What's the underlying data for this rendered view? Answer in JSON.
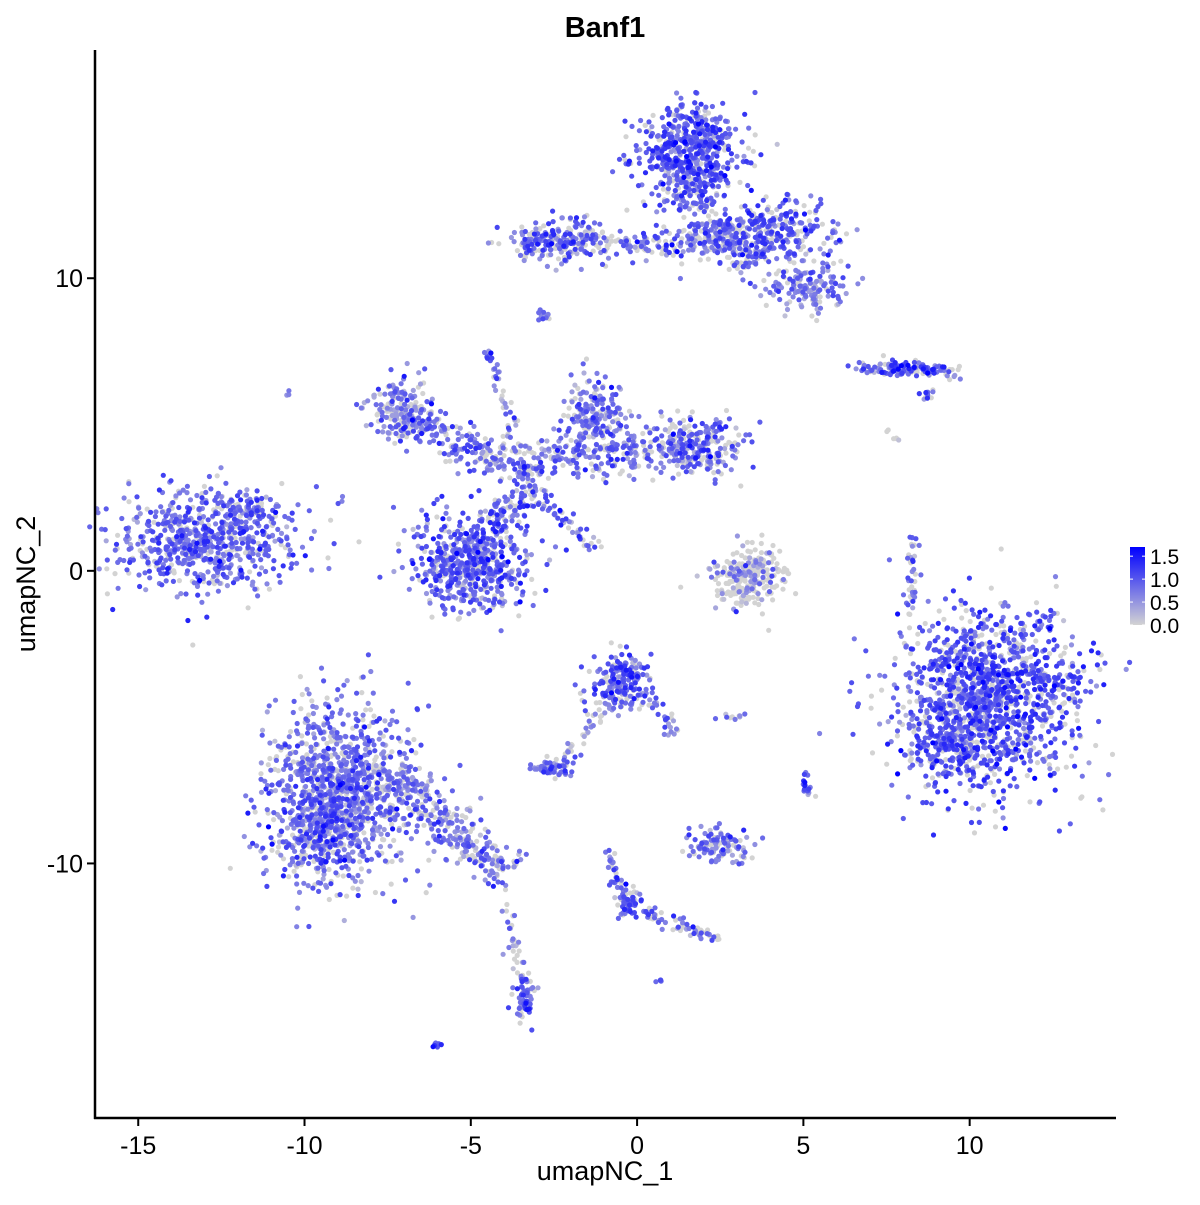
{
  "chart_data": {
    "type": "scatter",
    "title": "Banf1",
    "xlabel": "umapNC_1",
    "ylabel": "umapNC_2",
    "xlim": [
      -16.3,
      14.4
    ],
    "ylim": [
      -18.7,
      17.8
    ],
    "xticks": [
      -15,
      -10,
      -5,
      0,
      5,
      10
    ],
    "xtick_labels": [
      "-15",
      "-10",
      "-5",
      "0",
      "5",
      "10"
    ],
    "yticks": [
      -10,
      0,
      10
    ],
    "ytick_labels": [
      "-10",
      "0",
      "10"
    ],
    "grid": false,
    "legend": {
      "placement": "right",
      "range": [
        0,
        1.7
      ],
      "ticks": [
        0,
        0.5,
        1.0,
        1.5
      ],
      "tick_labels": [
        "0.0",
        "0.5",
        "1.0",
        "1.5"
      ]
    },
    "colors": {
      "low": "#D3D3D3",
      "high": "#0000FF"
    },
    "note_approximation": "point clouds summarised as clusters (center, spread, expression) in umap units",
    "clusters": [
      {
        "x": -12.9,
        "y": 1.1,
        "sx": 1.3,
        "sy": 0.9,
        "n": 700,
        "p": 0.8,
        "expr": 0.85
      },
      {
        "x": -11.6,
        "y": 2.2,
        "sx": 0.3,
        "sy": 0.25,
        "n": 40,
        "p": 0.8,
        "expr": 0.9
      },
      {
        "x": -8.9,
        "y": -7.6,
        "sx": 1.1,
        "sy": 1.5,
        "n": 1100,
        "p": 0.75,
        "expr": 0.8
      },
      {
        "x": -9.7,
        "y": -8.9,
        "sx": 0.6,
        "sy": 0.6,
        "n": 200,
        "p": 0.75,
        "expr": 0.8
      },
      {
        "x": 1.6,
        "y": 14.3,
        "sx": 0.8,
        "sy": 0.8,
        "n": 550,
        "p": 0.8,
        "expr": 0.95
      },
      {
        "x": -2.3,
        "y": 11.3,
        "sx": 0.7,
        "sy": 0.4,
        "n": 160,
        "p": 0.75,
        "expr": 0.9
      },
      {
        "x": 4.0,
        "y": 11.6,
        "sx": 1.0,
        "sy": 0.5,
        "n": 300,
        "p": 0.75,
        "expr": 0.9
      },
      {
        "x": 5.0,
        "y": 9.7,
        "sx": 0.6,
        "sy": 0.4,
        "n": 160,
        "p": 0.75,
        "expr": 0.7
      },
      {
        "x": -5.0,
        "y": 0.3,
        "sx": 0.9,
        "sy": 0.8,
        "n": 600,
        "p": 0.8,
        "expr": 0.9
      },
      {
        "x": -7.0,
        "y": 5.5,
        "sx": 0.5,
        "sy": 0.5,
        "n": 180,
        "p": 0.7,
        "expr": 0.7
      },
      {
        "x": -1.2,
        "y": 5.3,
        "sx": 0.5,
        "sy": 0.6,
        "n": 200,
        "p": 0.75,
        "expr": 0.8
      },
      {
        "x": 1.6,
        "y": 4.3,
        "sx": 0.8,
        "sy": 0.45,
        "n": 300,
        "p": 0.7,
        "expr": 0.85
      },
      {
        "x": 10.6,
        "y": -4.4,
        "sx": 1.4,
        "sy": 1.5,
        "n": 1400,
        "p": 0.75,
        "expr": 1.0
      },
      {
        "x": 9.4,
        "y": -6.1,
        "sx": 0.5,
        "sy": 0.5,
        "n": 150,
        "p": 0.75,
        "expr": 1.0
      },
      {
        "x": 3.3,
        "y": -0.2,
        "sx": 0.5,
        "sy": 0.5,
        "n": 200,
        "p": 0.3,
        "expr": 0.5
      },
      {
        "x": -0.5,
        "y": -3.8,
        "sx": 0.4,
        "sy": 0.5,
        "n": 200,
        "p": 0.8,
        "expr": 0.9
      },
      {
        "x": -2.6,
        "y": -6.8,
        "sx": 0.3,
        "sy": 0.15,
        "n": 60,
        "p": 0.8,
        "expr": 0.8
      },
      {
        "x": 2.4,
        "y": -9.4,
        "sx": 0.45,
        "sy": 0.3,
        "n": 110,
        "p": 0.75,
        "expr": 0.7
      },
      {
        "x": -0.2,
        "y": -11.3,
        "sx": 0.2,
        "sy": 0.3,
        "n": 50,
        "p": 0.85,
        "expr": 1.0
      },
      {
        "x": -3.4,
        "y": -14.7,
        "sx": 0.15,
        "sy": 0.4,
        "n": 60,
        "p": 0.8,
        "expr": 0.9
      },
      {
        "x": 8.0,
        "y": 6.9,
        "sx": 0.7,
        "sy": 0.1,
        "n": 90,
        "p": 0.8,
        "expr": 1.0
      },
      {
        "x": 5.1,
        "y": -7.4,
        "sx": 0.1,
        "sy": 0.2,
        "n": 20,
        "p": 0.8,
        "expr": 0.8
      },
      {
        "x": -6.0,
        "y": -16.2,
        "sx": 0.08,
        "sy": 0.06,
        "n": 8,
        "p": 1,
        "expr": 0.9
      },
      {
        "x": -2.8,
        "y": 8.7,
        "sx": 0.12,
        "sy": 0.12,
        "n": 12,
        "p": 0.8,
        "expr": 0.7
      },
      {
        "x": -4.5,
        "y": 7.4,
        "sx": 0.1,
        "sy": 0.1,
        "n": 12,
        "p": 0.8,
        "expr": 0.8
      },
      {
        "x": -10.5,
        "y": 6.1,
        "sx": 0.04,
        "sy": 0.04,
        "n": 3,
        "p": 1,
        "expr": 0.9
      },
      {
        "x": 0.7,
        "y": -14.0,
        "sx": 0.05,
        "sy": 0.05,
        "n": 4,
        "p": 1,
        "expr": 1.0
      },
      {
        "x": 2.9,
        "y": -5.0,
        "sx": 0.2,
        "sy": 0.06,
        "n": 10,
        "p": 0.8,
        "expr": 0.7
      }
    ],
    "arms": [
      {
        "from": [
          -7.0,
          5.3
        ],
        "to": [
          -4.2,
          3.7
        ],
        "n": 160,
        "w": 0.35,
        "p": 0.75,
        "expr": 0.8
      },
      {
        "from": [
          -4.2,
          3.7
        ],
        "to": [
          0.0,
          4.0
        ],
        "n": 200,
        "w": 0.35,
        "p": 0.75,
        "expr": 0.8
      },
      {
        "from": [
          -4.3,
          7.2
        ],
        "to": [
          -3.3,
          3.0
        ],
        "n": 50,
        "w": 0.12,
        "p": 0.7,
        "expr": 0.8
      },
      {
        "from": [
          -3.3,
          3.0
        ],
        "to": [
          -1.2,
          0.7
        ],
        "n": 60,
        "w": 0.15,
        "p": 0.7,
        "expr": 0.8
      },
      {
        "from": [
          -4.5,
          1.5
        ],
        "to": [
          -3.0,
          3.0
        ],
        "n": 80,
        "w": 0.3,
        "p": 0.7,
        "expr": 0.9
      },
      {
        "from": [
          -7.5,
          -7.0
        ],
        "to": [
          -3.9,
          -10.4
        ],
        "n": 300,
        "w": 0.4,
        "p": 0.7,
        "expr": 0.75
      },
      {
        "from": [
          -4.0,
          -10.6
        ],
        "to": [
          -3.4,
          -14.5
        ],
        "n": 40,
        "w": 0.12,
        "p": 0.5,
        "expr": 0.6
      },
      {
        "from": [
          -3.5,
          11.3
        ],
        "to": [
          0.5,
          11.1
        ],
        "n": 120,
        "w": 0.25,
        "p": 0.6,
        "expr": 0.8
      },
      {
        "from": [
          1.0,
          13.5
        ],
        "to": [
          3.5,
          10.5
        ],
        "n": 180,
        "w": 0.35,
        "p": 0.7,
        "expr": 0.9
      },
      {
        "from": [
          0.5,
          11.2
        ],
        "to": [
          2.9,
          11.3
        ],
        "n": 120,
        "w": 0.35,
        "p": 0.7,
        "expr": 0.85
      },
      {
        "from": [
          -2.3,
          -6.7
        ],
        "to": [
          -0.8,
          -4.5
        ],
        "n": 40,
        "w": 0.12,
        "p": 0.6,
        "expr": 0.7
      },
      {
        "from": [
          0.3,
          -4.1
        ],
        "to": [
          1.2,
          -5.6
        ],
        "n": 30,
        "w": 0.15,
        "p": 0.7,
        "expr": 0.8
      },
      {
        "from": [
          -0.9,
          -9.5
        ],
        "to": [
          -0.3,
          -11.5
        ],
        "n": 40,
        "w": 0.1,
        "p": 0.7,
        "expr": 0.9
      },
      {
        "from": [
          0.0,
          -11.6
        ],
        "to": [
          2.5,
          -12.6
        ],
        "n": 60,
        "w": 0.15,
        "p": 0.6,
        "expr": 0.8
      },
      {
        "from": [
          8.2,
          -1.5
        ],
        "to": [
          8.3,
          1.2
        ],
        "n": 40,
        "w": 0.1,
        "p": 0.6,
        "expr": 0.8
      },
      {
        "from": [
          6.6,
          7.0
        ],
        "to": [
          9.8,
          6.8
        ],
        "n": 60,
        "w": 0.12,
        "p": 0.7,
        "expr": 0.9
      },
      {
        "from": [
          8.5,
          5.8
        ],
        "to": [
          9.0,
          6.2
        ],
        "n": 12,
        "w": 0.08,
        "p": 0.7,
        "expr": 0.8
      },
      {
        "from": [
          7.5,
          4.8
        ],
        "to": [
          7.9,
          4.5
        ],
        "n": 6,
        "w": 0.06,
        "p": 0.1,
        "expr": 0.3
      },
      {
        "from": [
          2.5,
          -1.0
        ],
        "to": [
          4.2,
          0.4
        ],
        "n": 80,
        "w": 0.3,
        "p": 0.3,
        "expr": 0.5
      }
    ]
  }
}
